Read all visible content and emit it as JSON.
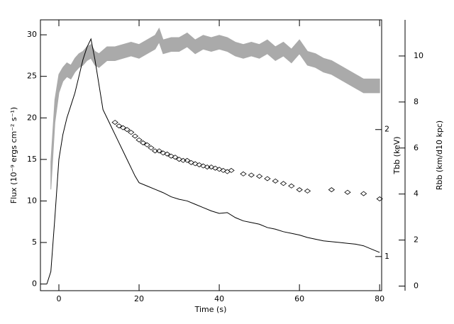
{
  "chart_data": {
    "type": "line",
    "xlabel": "Time (s)",
    "ylabel": "Flux (10⁻⁹ ergs cm⁻² s⁻¹)",
    "y2label": "Tbb (keV)",
    "y3label": "Rbb (km/d10 kpc)",
    "xlim": [
      -4.6,
      80.5
    ],
    "xticks": [
      0,
      20,
      40,
      60,
      80
    ],
    "ylim": [
      -0.8,
      31.8
    ],
    "yticks": [
      0,
      5,
      10,
      15,
      20,
      25,
      30
    ],
    "y2lim": [
      0.83,
      3.64
    ],
    "y2ticks": [
      1,
      2
    ],
    "y2log": true,
    "y3lim": [
      -0.2,
      11.57
    ],
    "y3ticks": [
      0,
      2,
      4,
      6,
      8,
      10
    ],
    "series": [
      {
        "axis": "y",
        "style": "line",
        "color": "#000000",
        "x": [
          -3,
          -2,
          -1,
          0,
          1,
          2,
          3,
          4,
          5,
          6,
          7,
          8,
          9,
          10,
          11,
          12,
          13,
          14,
          15,
          16,
          17,
          18,
          19,
          20,
          22,
          24,
          26,
          28,
          30,
          32,
          34,
          36,
          38,
          40,
          42,
          44,
          46,
          48,
          50,
          52,
          54,
          56,
          58,
          60,
          62,
          64,
          66,
          68,
          70,
          72,
          74,
          76,
          78,
          80
        ],
        "values": [
          0,
          1.5,
          8,
          15,
          18,
          20,
          21.5,
          23,
          25,
          27,
          28.5,
          29.5,
          27,
          24,
          21,
          20,
          19,
          18,
          17,
          16,
          15,
          14,
          13,
          12.2,
          11.8,
          11.4,
          11,
          10.5,
          10.2,
          10,
          9.6,
          9.2,
          8.8,
          8.5,
          8.6,
          8,
          7.6,
          7.4,
          7.2,
          6.8,
          6.6,
          6.3,
          6.1,
          5.9,
          5.6,
          5.4,
          5.2,
          5.1,
          5,
          4.9,
          4.8,
          4.6,
          4.2,
          3.8
        ]
      },
      {
        "axis": "y2",
        "style": "diamond",
        "color": "#000000",
        "x": [
          14,
          15,
          16,
          17,
          18,
          19,
          20,
          21,
          22,
          23,
          24,
          25,
          26,
          27,
          28,
          29,
          30,
          31,
          32,
          33,
          34,
          35,
          36,
          37,
          38,
          39,
          40,
          41,
          42,
          43,
          46,
          48,
          50,
          52,
          54,
          56,
          58,
          60,
          62,
          68,
          72,
          76,
          80
        ],
        "values": [
          2.08,
          2.04,
          2.02,
          2.0,
          1.97,
          1.93,
          1.89,
          1.86,
          1.84,
          1.81,
          1.78,
          1.78,
          1.76,
          1.75,
          1.73,
          1.72,
          1.7,
          1.69,
          1.69,
          1.67,
          1.66,
          1.65,
          1.64,
          1.63,
          1.63,
          1.62,
          1.61,
          1.6,
          1.59,
          1.6,
          1.57,
          1.56,
          1.55,
          1.53,
          1.51,
          1.49,
          1.47,
          1.44,
          1.43,
          1.44,
          1.42,
          1.41,
          1.37
        ]
      },
      {
        "axis": "y3",
        "style": "band",
        "color": "#aaaaaa",
        "x": [
          -2,
          -1,
          0,
          1,
          2,
          3,
          4,
          5,
          6,
          7,
          8,
          9,
          10,
          12,
          14,
          16,
          18,
          20,
          22,
          24,
          25,
          26,
          28,
          30,
          32,
          34,
          36,
          38,
          40,
          42,
          44,
          46,
          48,
          50,
          52,
          54,
          56,
          58,
          60,
          62,
          64,
          66,
          68,
          70,
          72,
          74,
          76,
          78,
          80
        ],
        "low": [
          4.2,
          7.1,
          8.4,
          8.9,
          9.1,
          9.0,
          9.3,
          9.5,
          9.6,
          9.8,
          9.9,
          9.6,
          9.5,
          9.8,
          9.8,
          9.9,
          10.0,
          9.9,
          10.1,
          10.3,
          10.6,
          10.1,
          10.2,
          10.2,
          10.4,
          10.1,
          10.3,
          10.2,
          10.3,
          10.2,
          10.0,
          9.9,
          10.0,
          9.9,
          10.1,
          9.8,
          10.0,
          9.7,
          10.1,
          9.6,
          9.5,
          9.3,
          9.2,
          9.0,
          8.8,
          8.6,
          8.4,
          8.4,
          8.4
        ],
        "high": [
          5.4,
          8.1,
          9.2,
          9.5,
          9.7,
          9.6,
          9.9,
          10.1,
          10.2,
          10.4,
          10.5,
          10.2,
          10.1,
          10.4,
          10.4,
          10.5,
          10.6,
          10.5,
          10.7,
          10.9,
          11.2,
          10.7,
          10.8,
          10.8,
          11.0,
          10.7,
          10.9,
          10.8,
          10.9,
          10.8,
          10.6,
          10.5,
          10.6,
          10.5,
          10.7,
          10.4,
          10.6,
          10.3,
          10.7,
          10.2,
          10.1,
          9.9,
          9.8,
          9.6,
          9.4,
          9.2,
          9.0,
          9.0,
          9.0
        ]
      }
    ]
  }
}
